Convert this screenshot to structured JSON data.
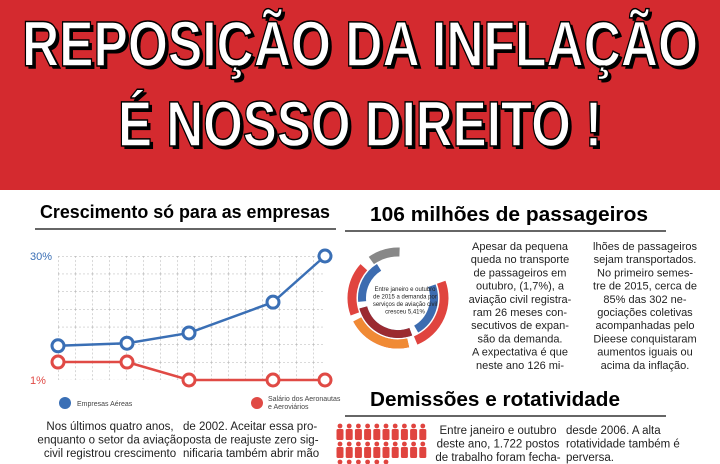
{
  "header": {
    "lines": [
      "REPOSIÇÃO DA INFLAÇÃO",
      "É NOSSO DIREITO !"
    ]
  },
  "chart_data": {
    "type": "line",
    "title": "Crescimento só para as empresas",
    "categories": [
      null,
      null,
      null,
      null,
      null
    ],
    "series": [
      {
        "name": "Empresas Aéreas",
        "color": "#3a6fb5",
        "values": [
          9,
          9.6,
          12,
          19.2,
          30
        ]
      },
      {
        "name": "Salário dos Aeronautas e Aeroviários",
        "color": "#e04a45",
        "values": [
          5.2,
          5.2,
          1,
          1,
          1
        ]
      }
    ],
    "ylim": [
      1,
      30
    ],
    "yticks": [
      {
        "value": 30,
        "label": "30%"
      },
      {
        "value": 1,
        "label": "1%"
      }
    ]
  },
  "left_text": {
    "col1": [
      "Nos últimos quatro anos,",
      "enquanto o setor da aviação",
      "civil registrou crescimento"
    ],
    "col2": [
      "de 2002.  Aceitar essa pro-",
      "posta de reajuste zero sig-",
      "nificaria também abrir mão"
    ]
  },
  "passengers": {
    "title": "106 milhões de passageiros",
    "donut_note": [
      "Entre janeiro e outubro",
      "de 2015 a demanda por",
      "serviços de aviação civil",
      "cresceu 5,41%"
    ],
    "col1": [
      "Apesar da pequena",
      "queda no transporte",
      "de passageiros em",
      "outubro, (1,7%), a",
      "aviação civil registra-",
      "ram 26 meses con-",
      "secutivos de expan-",
      "são da demanda.",
      "A expectativa é que",
      "neste ano 126 mi-"
    ],
    "col2": [
      "lhões de passageiros",
      "sejam transportados.",
      "No primeiro semes-",
      "tre de 2015, cerca de",
      "85% das 302 ne-",
      "gociações coletivas",
      "acompanhadas pelo",
      "Dieese conquistaram",
      "aumentos iguais ou",
      "acima da inflação."
    ]
  },
  "dismissals": {
    "title": "Demissões e rotatividade",
    "col1": [
      "Entre janeiro e outubro",
      "deste ano, 1.722 postos",
      "de trabalho foram fecha-"
    ],
    "col2": [
      "desde 2006. A alta",
      "rotatividade também é",
      "perversa."
    ]
  }
}
